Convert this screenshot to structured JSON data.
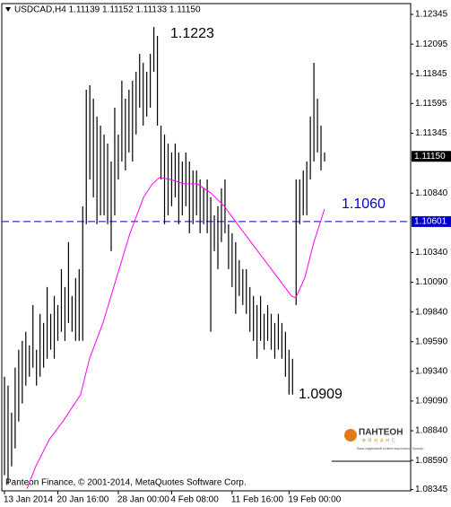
{
  "chart_data": {
    "type": "ohlc",
    "title": "USDCAD,H4  1.11139 1.11152 1.11133 1.11150",
    "footer": "Panteon Finance, © 2001-2014, MetaQuotes Software Corp.",
    "color": "#000000",
    "categories": [
      "13 Jan 2014",
      null,
      null,
      null,
      null,
      null,
      null,
      null,
      null,
      null,
      null,
      null,
      null,
      null,
      null,
      "20 Jan 16:00",
      null,
      null,
      null,
      null,
      null,
      null,
      null,
      null,
      null,
      null,
      null,
      null,
      null,
      null,
      null,
      null,
      "28 Jan 00:00",
      null,
      null,
      null,
      null,
      null,
      null,
      null,
      null,
      null,
      null,
      null,
      null,
      null,
      null,
      "4 Feb 08:00",
      null,
      null,
      null,
      null,
      null,
      null,
      null,
      null,
      null,
      null,
      null,
      null,
      null,
      null,
      null,
      null,
      "11 Feb 16:00",
      null,
      null,
      null,
      null,
      null,
      null,
      null,
      null,
      null,
      null,
      null,
      null,
      null,
      null,
      null,
      "19 Feb 00:00",
      null,
      null,
      null,
      null,
      null,
      null,
      null,
      null,
      null,
      null
    ],
    "high": [
      1.09295,
      1.0922,
      1.08993,
      1.09371,
      1.09522,
      1.09597,
      1.09673,
      1.09559,
      1.09899,
      1.09522,
      1.09824,
      1.09748,
      1.1005,
      1.09824,
      1.09975,
      1.09899,
      1.10201,
      1.1005,
      1.10428,
      1.09975,
      1.10126,
      1.10201,
      1.1073,
      1.11711,
      1.11749,
      1.11636,
      1.11485,
      1.11409,
      1.11334,
      1.11258,
      1.11107,
      1.1156,
      1.11334,
      1.11787,
      1.11636,
      1.11711,
      1.11787,
      1.11862,
      1.12013,
      1.11938,
      1.11862,
      1.12013,
      1.1224,
      1.12164,
      1.11409,
      1.11334,
      1.11258,
      1.11183,
      1.11258,
      1.11183,
      1.11107,
      1.11183,
      1.11107,
      1.11032,
      1.11032,
      1.10956,
      1.10881,
      1.10956,
      1.10805,
      1.10654,
      1.1073,
      1.10881,
      1.10956,
      1.10579,
      1.10503,
      1.10428,
      1.10277,
      1.10201,
      1.10201,
      1.1005,
      1.09975,
      1.09899,
      1.09975,
      1.09824,
      1.09899,
      1.09824,
      1.09748,
      1.09824,
      1.09748,
      1.09673,
      1.09522,
      1.09446,
      1.10956,
      1.10956,
      1.11032,
      1.11107,
      1.11485,
      1.11938,
      1.11636,
      1.11409,
      1.11183
    ],
    "low": [
      1.08465,
      1.08389,
      1.0854,
      1.08691,
      1.08918,
      1.09069,
      1.0922,
      1.09295,
      1.09371,
      1.0922,
      1.09295,
      1.09371,
      1.09446,
      1.09522,
      1.09446,
      1.09597,
      1.09673,
      1.09597,
      1.09748,
      1.09673,
      1.09597,
      1.09597,
      1.09597,
      1.10579,
      1.10956,
      1.10805,
      1.10579,
      1.10654,
      1.10654,
      1.10579,
      1.10352,
      1.10654,
      1.10956,
      1.11107,
      1.11032,
      1.11183,
      1.11107,
      1.11334,
      1.1156,
      1.11409,
      1.11485,
      1.1156,
      1.11862,
      1.11409,
      1.10956,
      1.10579,
      1.10654,
      1.1073,
      1.10805,
      1.10579,
      1.10654,
      1.1073,
      1.10503,
      1.10579,
      1.10654,
      1.10503,
      1.10579,
      1.10503,
      1.09673,
      1.10352,
      1.10201,
      1.10428,
      1.10503,
      1.10201,
      1.1005,
      1.09824,
      1.09975,
      1.09899,
      1.09824,
      1.09673,
      1.09597,
      1.09446,
      1.09597,
      1.09522,
      1.09597,
      1.09522,
      1.09446,
      1.09522,
      1.09446,
      1.09295,
      1.09144,
      1.09144,
      1.09899,
      1.10579,
      1.10654,
      1.10654,
      1.10956,
      1.11107,
      1.11183,
      1.11032,
      1.11107
    ],
    "ma": {
      "color": "#ff00ff",
      "x": [
        6.3,
        8.8,
        12.6,
        16.4,
        21.4,
        23.9,
        27.7,
        31.5,
        35.3,
        39.1,
        41.6,
        43.6,
        46.6,
        50.4,
        54.2,
        58.0,
        61.8,
        65.5,
        69.3,
        73.1,
        76.9,
        80.7,
        81.9,
        84.4,
        87.0,
        90.0
      ],
      "values": [
        1.08351,
        1.0854,
        1.08767,
        1.08918,
        1.09144,
        1.09446,
        1.09748,
        1.10126,
        1.10503,
        1.10805,
        1.10918,
        1.10971,
        1.10956,
        1.10918,
        1.10918,
        1.10843,
        1.1073,
        1.10579,
        1.10428,
        1.10277,
        1.10126,
        1.09975,
        1.09959,
        1.10126,
        1.10428,
        1.10707
      ]
    },
    "ylim": [
      1.08334,
      1.12436
    ],
    "yticks": [
      1.12345,
      1.12095,
      1.11845,
      1.11595,
      1.11345,
      {
        "value": 1.1084,
        "label": "1.10840"
      },
      {
        "value": 1.1034,
        "label": "1.10340"
      },
      {
        "value": 1.1009,
        "label": "1.10090"
      },
      {
        "value": 1.0984,
        "label": "1.09840"
      },
      {
        "value": 1.0959,
        "label": "1.09590"
      },
      {
        "value": 1.0934,
        "label": "1.09340"
      },
      {
        "value": 1.0909,
        "label": "1.09090"
      },
      {
        "value": 1.0884,
        "label": "1.08840"
      },
      {
        "value": 1.0859,
        "label": "1.08590"
      },
      1.08345
    ],
    "current_price": {
      "value": 1.1115,
      "label": "1.11150"
    },
    "hline": {
      "value": 1.10601,
      "color": "#0000cc"
    },
    "annotations": [
      "1.1223",
      "1.1060",
      "1.0909"
    ],
    "logo": {
      "name": "ПАНТЕОН",
      "sub": "ФИНАНС",
      "tagline": "Ваш надежный инвестиционный брокер"
    }
  }
}
